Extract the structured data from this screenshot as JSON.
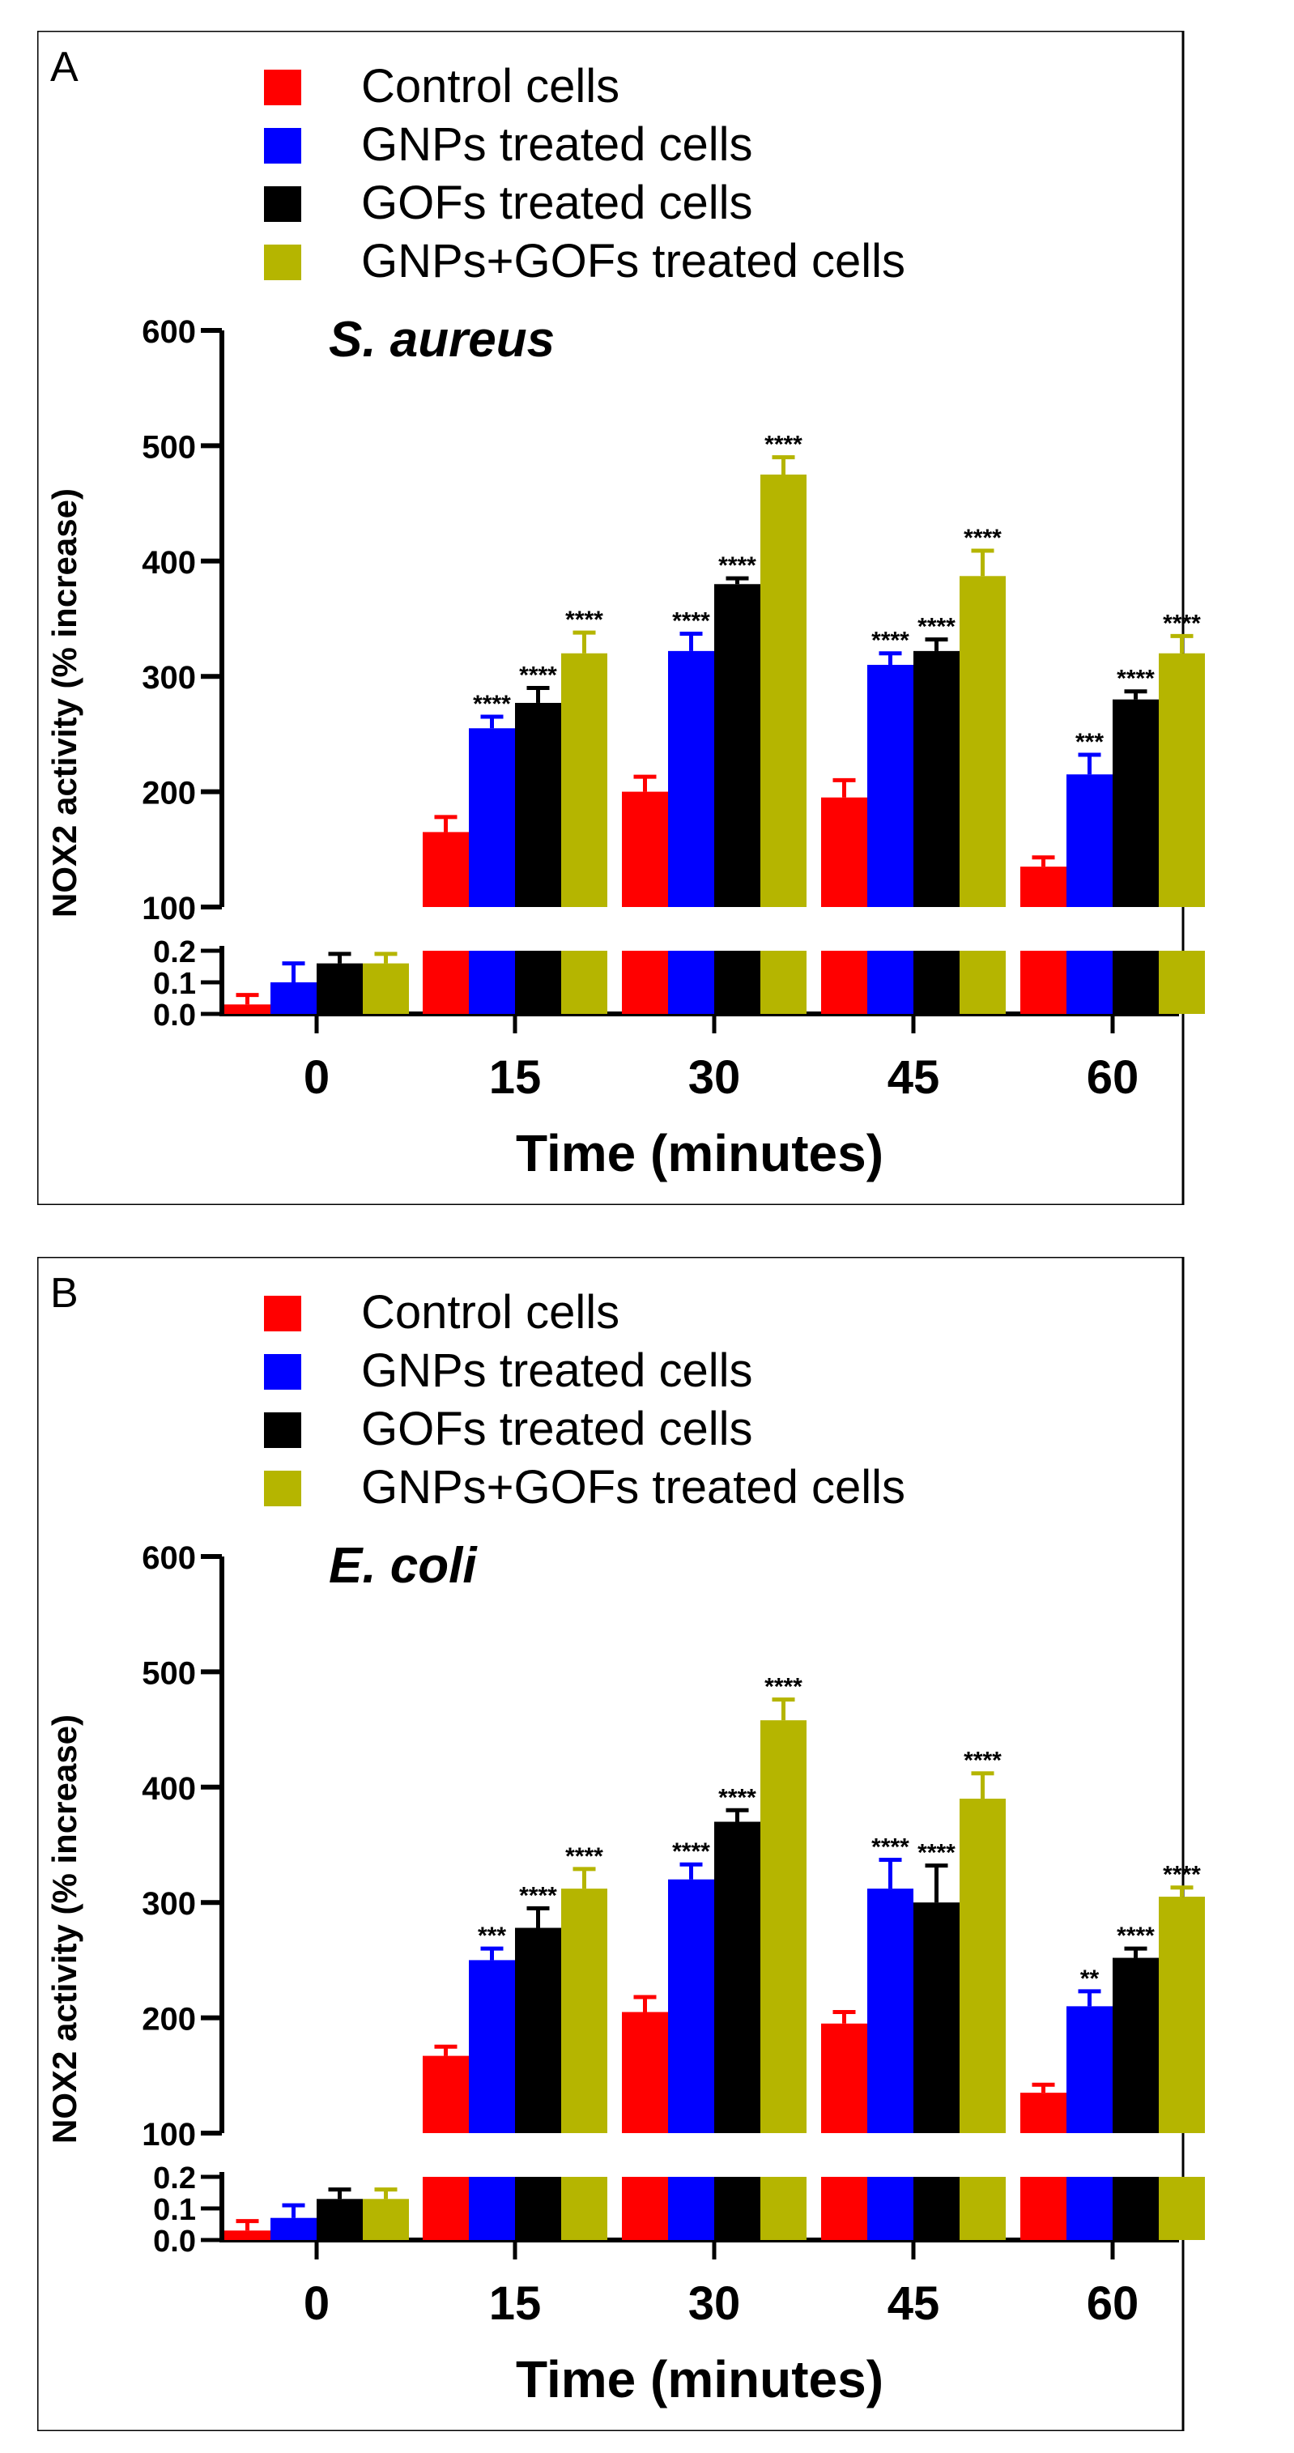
{
  "chart_data": [
    {
      "type": "bar",
      "panel_label": "A",
      "title": "S. aureus",
      "xlabel": "Time (minutes)",
      "ylabel": "NOX2 activity (% increase)",
      "categories": [
        "0",
        "15",
        "30",
        "45",
        "60"
      ],
      "yaxis_upper": {
        "ylim": [
          100,
          600
        ],
        "ticks": [
          "100",
          "200",
          "300",
          "400",
          "500",
          "600"
        ]
      },
      "yaxis_lower": {
        "ylim": [
          0.0,
          0.2
        ],
        "ticks": [
          "0.0",
          "0.1",
          "0.2"
        ]
      },
      "axis_break": true,
      "legend_position": "top-left",
      "series": [
        {
          "name": "Control cells",
          "color": "#ff0000",
          "values": [
            0.03,
            165,
            200,
            195,
            135
          ],
          "errors": [
            0.03,
            13,
            13,
            15,
            8
          ],
          "significance": [
            "",
            "",
            "",
            "",
            ""
          ]
        },
        {
          "name": "GNPs treated cells",
          "color": "#0000ff",
          "values": [
            0.1,
            255,
            322,
            310,
            215
          ],
          "errors": [
            0.06,
            10,
            15,
            10,
            17
          ],
          "significance": [
            "",
            "****",
            "****",
            "****",
            "***"
          ]
        },
        {
          "name": "GOFs treated cells",
          "color": "#000000",
          "values": [
            0.16,
            277,
            380,
            322,
            280
          ],
          "errors": [
            0.03,
            13,
            5,
            10,
            7
          ],
          "significance": [
            "",
            "****",
            "****",
            "****",
            "****"
          ]
        },
        {
          "name": "GNPs+GOFs treated cells",
          "color": "#b5b500",
          "values": [
            0.16,
            320,
            475,
            387,
            320
          ],
          "errors": [
            0.03,
            18,
            15,
            22,
            15
          ],
          "significance": [
            "",
            "****",
            "****",
            "****",
            "****"
          ]
        }
      ]
    },
    {
      "type": "bar",
      "panel_label": "B",
      "title": "E. coli",
      "xlabel": "Time (minutes)",
      "ylabel": "NOX2 activity (% increase)",
      "categories": [
        "0",
        "15",
        "30",
        "45",
        "60"
      ],
      "yaxis_upper": {
        "ylim": [
          100,
          600
        ],
        "ticks": [
          "100",
          "200",
          "300",
          "400",
          "500",
          "600"
        ]
      },
      "yaxis_lower": {
        "ylim": [
          0.0,
          0.2
        ],
        "ticks": [
          "0.0",
          "0.1",
          "0.2"
        ]
      },
      "axis_break": true,
      "legend_position": "top-left",
      "series": [
        {
          "name": "Control cells",
          "color": "#ff0000",
          "values": [
            0.03,
            167,
            205,
            195,
            135
          ],
          "errors": [
            0.03,
            8,
            13,
            10,
            7
          ],
          "significance": [
            "",
            "",
            "",
            "",
            ""
          ]
        },
        {
          "name": "GNPs treated cells",
          "color": "#0000ff",
          "values": [
            0.07,
            250,
            320,
            312,
            210
          ],
          "errors": [
            0.04,
            10,
            13,
            25,
            13
          ],
          "significance": [
            "",
            "***",
            "****",
            "****",
            "**"
          ]
        },
        {
          "name": "GOFs treated cells",
          "color": "#000000",
          "values": [
            0.13,
            278,
            370,
            300,
            252
          ],
          "errors": [
            0.03,
            17,
            10,
            32,
            8
          ],
          "significance": [
            "",
            "****",
            "****",
            "****",
            "****"
          ]
        },
        {
          "name": "GNPs+GOFs treated cells",
          "color": "#b5b500",
          "values": [
            0.13,
            312,
            458,
            390,
            305
          ],
          "errors": [
            0.03,
            17,
            18,
            22,
            8
          ],
          "significance": [
            "",
            "****",
            "****",
            "****",
            "****"
          ]
        }
      ]
    }
  ]
}
